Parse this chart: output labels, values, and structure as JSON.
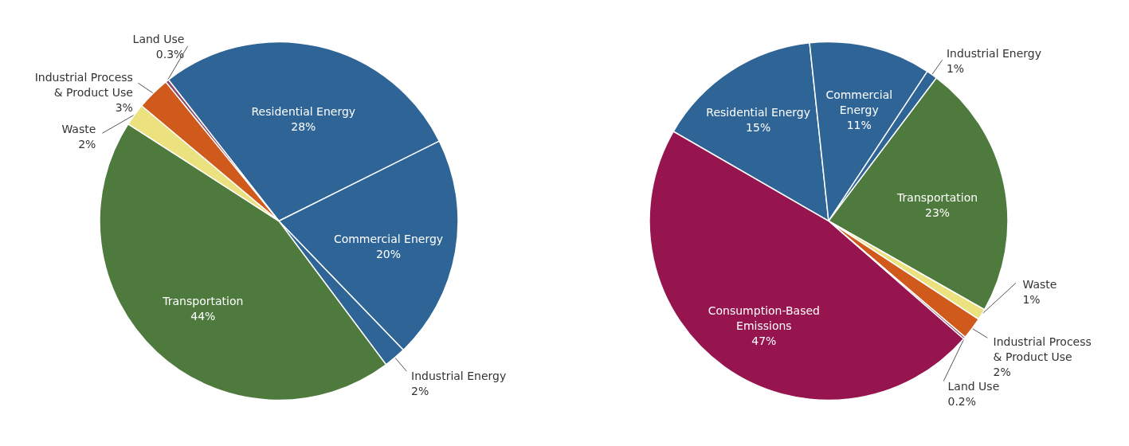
{
  "chart_data": [
    {
      "type": "pie",
      "categories": [
        "Residential Energy",
        "Commercial Energy",
        "Industrial Energy",
        "Transportation",
        "Waste",
        "Industrial Process & Product Use",
        "Land Use"
      ],
      "values": [
        28,
        20,
        2,
        44,
        2,
        3,
        0.3
      ],
      "value_labels": [
        "28%",
        "20%",
        "2%",
        "44%",
        "2%",
        "3%",
        "0.3%"
      ],
      "colors": [
        "#2e6496",
        "#2e6496",
        "#2e6496",
        "#4e7a3e",
        "#ebe17f",
        "#cf5a1c",
        "#8a4a6e"
      ]
    },
    {
      "type": "pie",
      "categories": [
        "Residential Energy",
        "Commercial Energy",
        "Industrial Energy",
        "Transportation",
        "Waste",
        "Industrial Process & Product Use",
        "Land Use",
        "Consumption-Based Emissions"
      ],
      "values": [
        15,
        11,
        1,
        23,
        1,
        2,
        0.2,
        47
      ],
      "value_labels": [
        "15%",
        "11%",
        "1%",
        "23%",
        "1%",
        "2%",
        "0.2%",
        "47%"
      ],
      "colors": [
        "#2e6496",
        "#2e6496",
        "#2e6496",
        "#4e7a3e",
        "#ebe17f",
        "#cf5a1c",
        "#8a4a6e",
        "#97154f"
      ]
    }
  ]
}
